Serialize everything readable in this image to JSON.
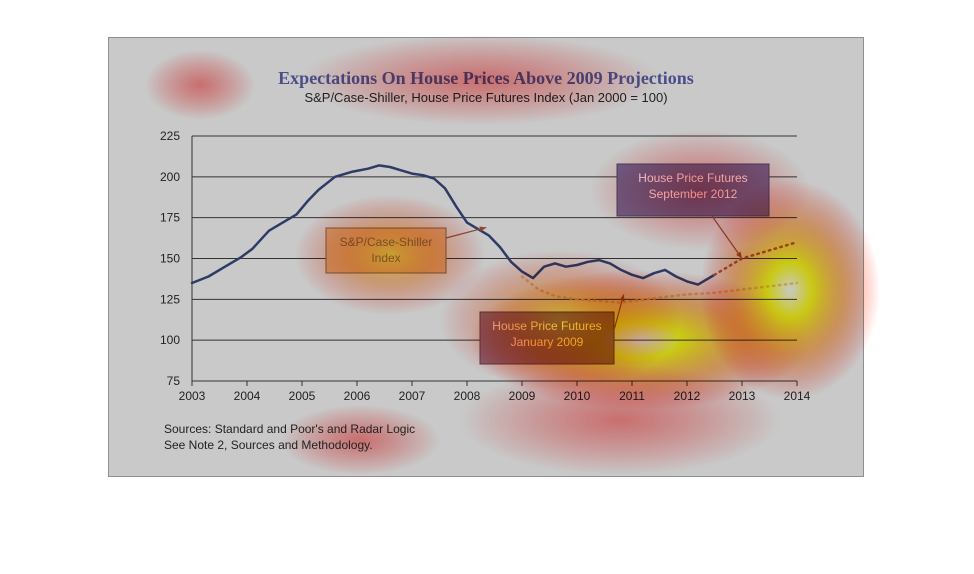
{
  "chart_data": {
    "type": "line",
    "title": "Expectations On House Prices Above 2009 Projections",
    "subtitle": "S&P/Case-Shiller, House Price Futures Index (Jan 2000 = 100)",
    "ylim": [
      75,
      225
    ],
    "yticks": [
      75,
      100,
      125,
      150,
      175,
      200,
      225
    ],
    "xlim": [
      2003,
      2014
    ],
    "xticks": [
      "2003",
      "2004",
      "2005",
      "2006",
      "2007",
      "2008",
      "2009",
      "2010",
      "2011",
      "2012",
      "2013",
      "2014"
    ],
    "grid": true,
    "series": [
      {
        "name": "S&P/Case-Shiller Index",
        "style": "solid",
        "color": "#2f3b66",
        "x": [
          2003.0,
          2003.3,
          2003.6,
          2003.9,
          2004.1,
          2004.4,
          2004.7,
          2004.9,
          2005.1,
          2005.3,
          2005.6,
          2005.9,
          2006.2,
          2006.4,
          2006.6,
          2006.8,
          2007.0,
          2007.2,
          2007.4,
          2007.6,
          2007.8,
          2008.0,
          2008.2,
          2008.4,
          2008.6,
          2008.8,
          2009.0,
          2009.2,
          2009.4,
          2009.6,
          2009.8,
          2010.0,
          2010.2,
          2010.4,
          2010.6,
          2010.8,
          2011.0,
          2011.2,
          2011.4,
          2011.6,
          2011.8,
          2012.0,
          2012.2,
          2012.4,
          2012.5
        ],
        "y": [
          135,
          139,
          145,
          151,
          156,
          167,
          173,
          177,
          185,
          192,
          200,
          203,
          205,
          207,
          206,
          204,
          202,
          201,
          199,
          193,
          182,
          172,
          168,
          164,
          157,
          148,
          142,
          138,
          145,
          147,
          145,
          146,
          148,
          149,
          147,
          143,
          140,
          138,
          141,
          143,
          139,
          136,
          134,
          138,
          140
        ]
      },
      {
        "name": "House Price Futures September 2012",
        "style": "dotted",
        "color": "#9a5040",
        "x": [
          2012.5,
          2012.8,
          2013.0,
          2013.3,
          2013.6,
          2014.0
        ],
        "y": [
          140,
          146,
          150,
          153,
          156,
          160
        ]
      },
      {
        "name": "House Price Futures January 2009",
        "style": "dotted",
        "color": "#b9a47a",
        "x": [
          2009.0,
          2009.3,
          2009.6,
          2010.0,
          2010.4,
          2010.8,
          2011.0,
          2011.5,
          2012.0,
          2012.5,
          2013.0,
          2013.5,
          2014.0
        ],
        "y": [
          139,
          131,
          127,
          125,
          124,
          123,
          124,
          126,
          128,
          129,
          131,
          133,
          135
        ]
      }
    ],
    "annotations": [
      {
        "text": [
          "S&P/Case-Shiller",
          "Index"
        ],
        "arrow_to": [
          2008.35,
          169
        ]
      },
      {
        "text": [
          "House Price Futures",
          "September 2012"
        ],
        "arrow_to": [
          2013.0,
          150
        ]
      },
      {
        "text": [
          "House Price Futures",
          "January 2009"
        ],
        "arrow_to": [
          2010.85,
          128
        ]
      }
    ],
    "sources": [
      "Sources:  Standard and Poor's and Radar Logic",
      "See Note 2, Sources and Methodology."
    ]
  }
}
